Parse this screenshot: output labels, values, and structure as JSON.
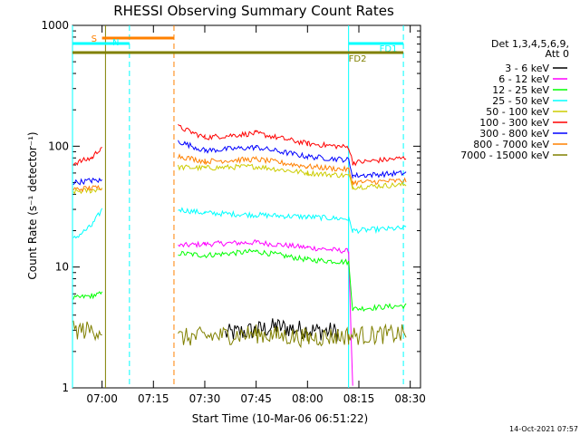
{
  "chart_data": {
    "type": "line",
    "title": "RHESSI Observing Summary Count Rates",
    "xlabel": "Start Time (10-Mar-06 06:51:22)",
    "ylabel": "Count Rate (s⁻¹ detector⁻¹)",
    "y_scale": "log",
    "ylim": [
      1,
      1000
    ],
    "y_ticks": [
      1,
      10,
      100,
      1000
    ],
    "x_range_minutes": [
      "06:51:22",
      "08:33:00"
    ],
    "x_ticks": [
      "07:00",
      "07:15",
      "07:30",
      "07:45",
      "08:00",
      "08:15",
      "08:30"
    ],
    "legend_title": [
      "Det 1,3,4,5,6,9,",
      "Att 0"
    ],
    "legend_position": "right",
    "footer_date": "14-Oct-2021 07:57",
    "flags": [
      {
        "label": "S",
        "color": "#ff8000",
        "start": "07:00",
        "end": "07:21"
      },
      {
        "label": "N",
        "color": "#00ffff",
        "start": "06:51",
        "end": "07:08"
      },
      {
        "label": "FD1",
        "color": "#00ffff",
        "start": "08:12",
        "end": "08:28"
      },
      {
        "label": "FD2",
        "color": "#808000",
        "start": "06:51",
        "end": "08:28"
      }
    ],
    "vertical_lines": [
      {
        "time": "06:51:22",
        "color": "#00ffff",
        "style": "solid"
      },
      {
        "time": "07:01:00",
        "color": "#808000",
        "style": "solid"
      },
      {
        "time": "07:08:00",
        "color": "#00ffff",
        "style": "dashed"
      },
      {
        "time": "07:21:00",
        "color": "#ff8000",
        "style": "dashed"
      },
      {
        "time": "08:12:00",
        "color": "#00ffff",
        "style": "solid"
      },
      {
        "time": "08:28:00",
        "color": "#00ffff",
        "style": "dashed"
      }
    ],
    "gap": [
      "07:01",
      "07:22"
    ],
    "series": [
      {
        "name": "3 - 6 keV",
        "color": "#000000",
        "before_gap": [],
        "after_gap": [
          [
            7.6,
            2.8
          ],
          [
            7.75,
            3.0
          ],
          [
            7.85,
            3.2
          ],
          [
            8.0,
            3.0
          ],
          [
            8.15,
            2.9
          ]
        ]
      },
      {
        "name": "6 - 12 keV",
        "color": "#ff00ff",
        "before_gap": [],
        "after_gap": [
          [
            7.37,
            15
          ],
          [
            7.5,
            15.5
          ],
          [
            7.75,
            16
          ],
          [
            8.0,
            14.5
          ],
          [
            8.2,
            13.5
          ],
          [
            8.22,
            1
          ]
        ]
      },
      {
        "name": "12 - 25 keV",
        "color": "#00ff00",
        "before_gap": [
          [
            6.86,
            5.5
          ],
          [
            6.95,
            5.8
          ],
          [
            7.0,
            6.0
          ]
        ],
        "after_gap": [
          [
            7.37,
            13
          ],
          [
            7.5,
            12.5
          ],
          [
            7.75,
            13.5
          ],
          [
            8.0,
            11.5
          ],
          [
            8.2,
            11
          ],
          [
            8.22,
            4.5
          ],
          [
            8.48,
            4.8
          ]
        ]
      },
      {
        "name": "25 - 50 keV",
        "color": "#00ffff",
        "before_gap": [
          [
            6.86,
            17
          ],
          [
            6.95,
            22
          ],
          [
            7.0,
            30
          ]
        ],
        "after_gap": [
          [
            7.37,
            30
          ],
          [
            7.5,
            28
          ],
          [
            7.75,
            27
          ],
          [
            8.0,
            26
          ],
          [
            8.2,
            25
          ],
          [
            8.22,
            20
          ],
          [
            8.48,
            21
          ]
        ]
      },
      {
        "name": "50 - 100 keV",
        "color": "#cccc00",
        "before_gap": [
          [
            6.86,
            42
          ],
          [
            6.95,
            43
          ],
          [
            7.0,
            45
          ]
        ],
        "after_gap": [
          [
            7.37,
            67
          ],
          [
            7.5,
            66
          ],
          [
            7.75,
            68
          ],
          [
            8.0,
            60
          ],
          [
            8.2,
            57
          ],
          [
            8.22,
            46
          ],
          [
            8.48,
            48
          ]
        ]
      },
      {
        "name": "100 - 300 keV",
        "color": "#ff0000",
        "before_gap": [
          [
            6.86,
            72
          ],
          [
            6.95,
            80
          ],
          [
            7.0,
            100
          ]
        ],
        "after_gap": [
          [
            7.37,
            145
          ],
          [
            7.5,
            118
          ],
          [
            7.75,
            128
          ],
          [
            8.0,
            105
          ],
          [
            8.2,
            98
          ],
          [
            8.22,
            73
          ],
          [
            8.48,
            80
          ]
        ]
      },
      {
        "name": "300 - 800 keV",
        "color": "#0000ff",
        "before_gap": [
          [
            6.86,
            50
          ],
          [
            6.95,
            52
          ],
          [
            7.0,
            52
          ]
        ],
        "after_gap": [
          [
            7.37,
            110
          ],
          [
            7.5,
            92
          ],
          [
            7.75,
            98
          ],
          [
            8.0,
            82
          ],
          [
            8.2,
            77
          ],
          [
            8.22,
            57
          ],
          [
            8.48,
            60
          ]
        ]
      },
      {
        "name": "800 - 7000 keV",
        "color": "#ff8000",
        "before_gap": [
          [
            6.86,
            44
          ],
          [
            6.95,
            45
          ],
          [
            7.0,
            46
          ]
        ],
        "after_gap": [
          [
            7.37,
            83
          ],
          [
            7.5,
            75
          ],
          [
            7.75,
            78
          ],
          [
            8.0,
            68
          ],
          [
            8.2,
            64
          ],
          [
            8.22,
            50
          ],
          [
            8.48,
            52
          ]
        ]
      },
      {
        "name": "7000 - 15000 keV",
        "color": "#808000",
        "before_gap": [
          [
            6.86,
            3.0
          ],
          [
            7.0,
            3.0
          ]
        ],
        "after_gap": [
          [
            7.37,
            2.6
          ],
          [
            7.75,
            2.8
          ],
          [
            8.0,
            2.6
          ],
          [
            8.2,
            2.7
          ],
          [
            8.48,
            2.8
          ]
        ]
      }
    ]
  }
}
